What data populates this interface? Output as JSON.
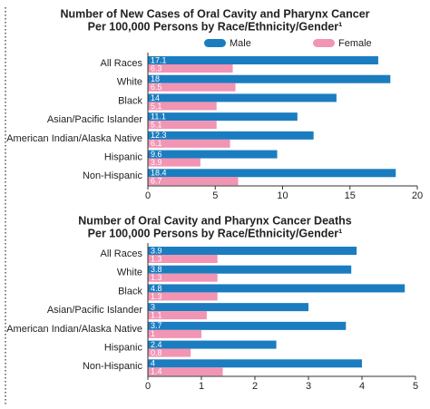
{
  "chart_data": [
    {
      "type": "bar",
      "orientation": "horizontal",
      "title": "Number of New Cases of Oral Cavity and Pharynx Cancer",
      "subtitle": "Per 100,000 Persons by Race/Ethnicity/Gender¹",
      "categories": [
        "All Races",
        "White",
        "Black",
        "Asian/Pacific Islander",
        "American Indian/Alaska Native",
        "Hispanic",
        "Non-Hispanic"
      ],
      "series": [
        {
          "name": "Male",
          "color": "#1b7dc0",
          "values": [
            17.1,
            18,
            14,
            11.1,
            12.3,
            9.6,
            18.4
          ]
        },
        {
          "name": "Female",
          "color": "#f294b3",
          "values": [
            6.3,
            6.5,
            5.1,
            5.1,
            6.1,
            3.9,
            6.7
          ]
        }
      ],
      "xlim": [
        0,
        20
      ],
      "xticks": [
        0,
        5,
        10,
        15,
        20
      ],
      "legend": "top"
    },
    {
      "type": "bar",
      "orientation": "horizontal",
      "title": "Number of Oral Cavity and Pharynx Cancer Deaths",
      "subtitle": "Per 100,000 Persons by Race/Ethnicity/Gender¹",
      "categories": [
        "All Races",
        "White",
        "Black",
        "Asian/Pacific Islander",
        "American Indian/Alaska Native",
        "Hispanic",
        "Non-Hispanic"
      ],
      "series": [
        {
          "color": "#1b7dc0",
          "values": [
            3.9,
            3.8,
            4.8,
            3,
            3.7,
            2.4,
            4
          ]
        },
        {
          "color": "#f294b3",
          "values": [
            1.3,
            1.3,
            1.3,
            1.1,
            1,
            0.8,
            1.4
          ]
        }
      ],
      "xlim": [
        0,
        5
      ],
      "xticks": [
        0,
        1,
        2,
        3,
        4,
        5
      ]
    }
  ]
}
